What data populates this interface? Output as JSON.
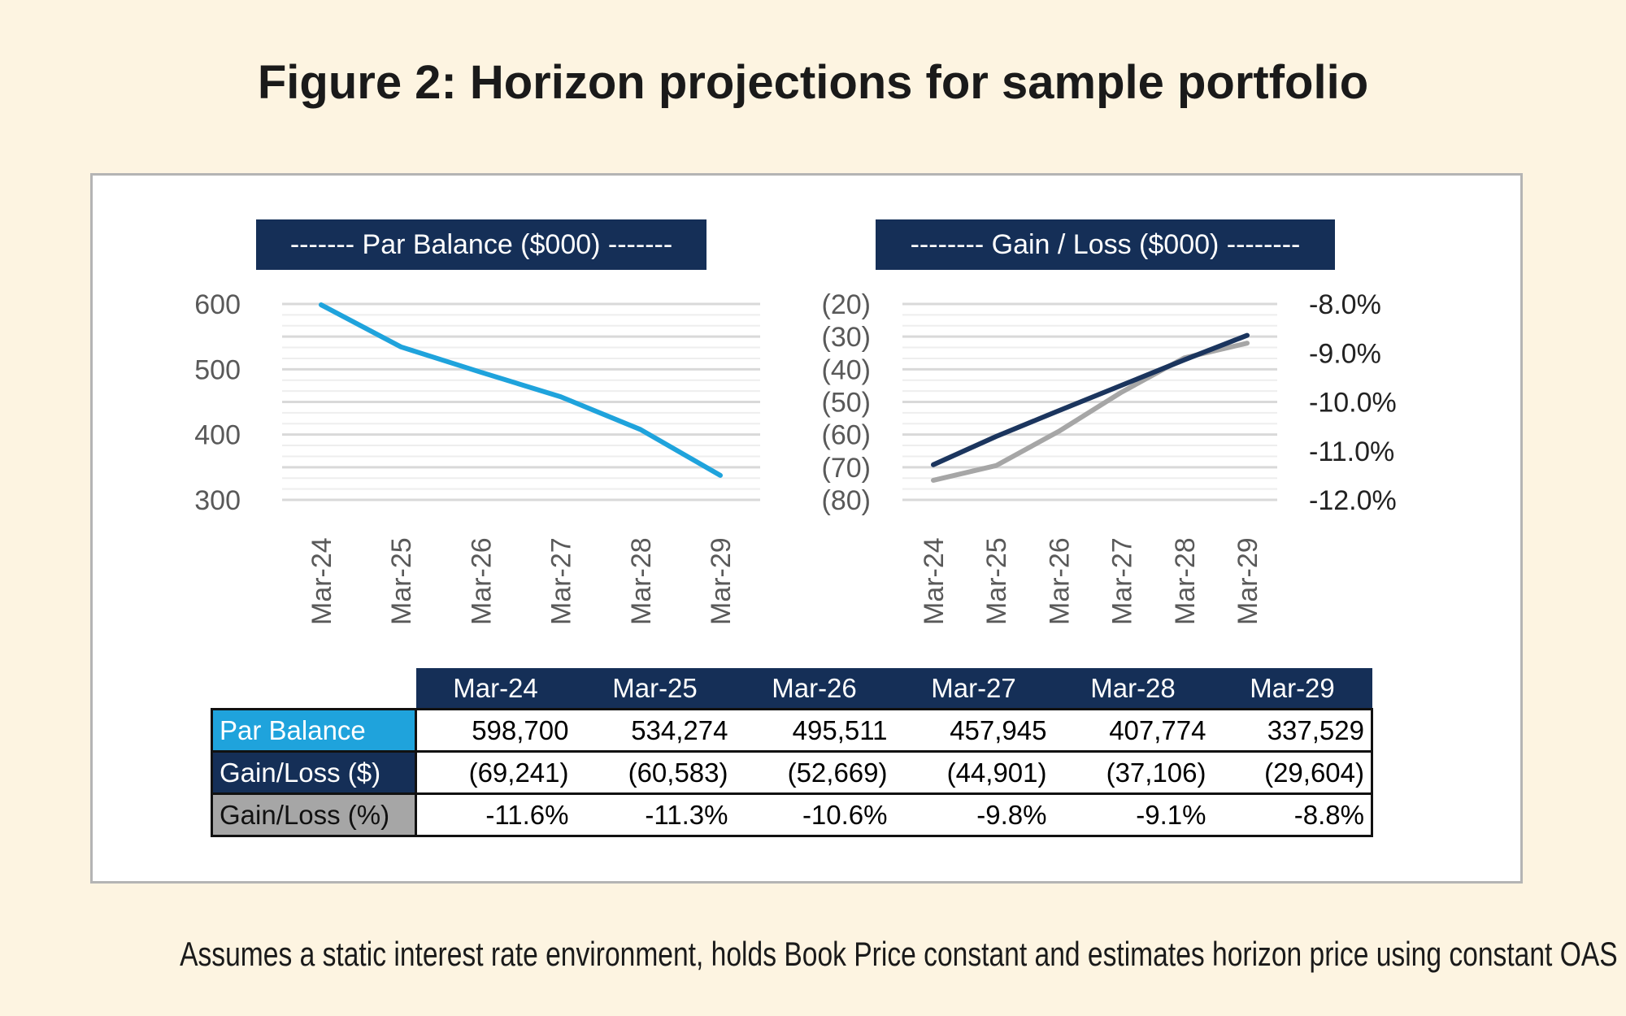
{
  "title": "Figure 2: Horizon projections for sample portfolio",
  "footnote": "Assumes a static interest rate environment, holds Book Price constant and estimates horizon price using constant OAS",
  "colors": {
    "par_line": "#1fa3dc",
    "gain_dollar_line": "#1b355e",
    "gain_pct_line": "#a6a6a6",
    "header_bg": "#152f57"
  },
  "chart_data": [
    {
      "type": "line",
      "title": "------- Par Balance  ($000) -------",
      "categories": [
        "Mar-24",
        "Mar-25",
        "Mar-26",
        "Mar-27",
        "Mar-28",
        "Mar-29"
      ],
      "series": [
        {
          "values": [
            598.7,
            534.274,
            495.511,
            457.945,
            407.774,
            337.529
          ]
        }
      ],
      "ylim": [
        300,
        600
      ],
      "yticks": [
        "600",
        "500",
        "400",
        "300"
      ],
      "grid": true
    },
    {
      "type": "line",
      "title": "-------- Gain / Loss ($000) --------",
      "categories": [
        "Mar-24",
        "Mar-25",
        "Mar-26",
        "Mar-27",
        "Mar-28",
        "Mar-29"
      ],
      "series": [
        {
          "axis": "left",
          "values": [
            -69.241,
            -60.583,
            -52.669,
            -44.901,
            -37.106,
            -29.604
          ]
        },
        {
          "axis": "right",
          "values": [
            -11.6,
            -11.3,
            -10.6,
            -9.8,
            -9.1,
            -8.8
          ]
        }
      ],
      "ylim_left": [
        -80,
        -20
      ],
      "ylim_right": [
        -12,
        -8
      ],
      "yticks_left": [
        "(20)",
        "(30)",
        "(40)",
        "(50)",
        "(60)",
        "(70)",
        "(80)"
      ],
      "yticks_right": [
        "-8.0%",
        "-9.0%",
        "-10.0%",
        "-11.0%",
        "-12.0%"
      ],
      "grid": true
    }
  ],
  "table": {
    "columns": [
      "Mar-24",
      "Mar-25",
      "Mar-26",
      "Mar-27",
      "Mar-28",
      "Mar-29"
    ],
    "rows": [
      {
        "label": "Par Balance",
        "bg": "#1fa3dc",
        "fg": "#ffffff",
        "values": [
          "598,700",
          "534,274",
          "495,511",
          "457,945",
          "407,774",
          "337,529"
        ]
      },
      {
        "label": "Gain/Loss ($)",
        "bg": "#152f57",
        "fg": "#ffffff",
        "values": [
          "(69,241)",
          "(60,583)",
          "(52,669)",
          "(44,901)",
          "(37,106)",
          "(29,604)"
        ]
      },
      {
        "label": "Gain/Loss (%)",
        "bg": "#a6a6a6",
        "fg": "#111111",
        "values": [
          "-11.6%",
          "-11.3%",
          "-10.6%",
          "-9.8%",
          "-9.1%",
          "-8.8%"
        ]
      }
    ]
  }
}
